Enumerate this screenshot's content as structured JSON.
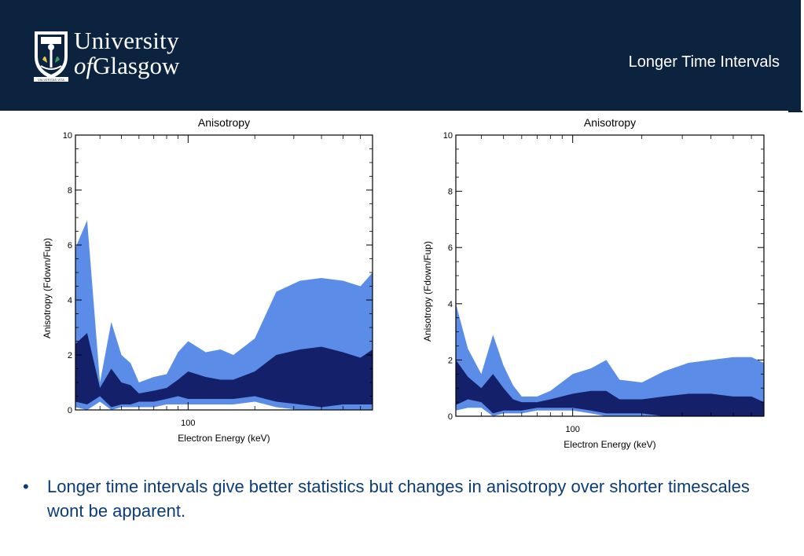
{
  "header": {
    "logo": {
      "line1": "University",
      "line2_of": "of",
      "line2_name": "Glasgow",
      "crest_motto": "VIA VERITAS VITA"
    },
    "title": "Longer Time Intervals"
  },
  "colors": {
    "header_bg": "#0c2340",
    "outer_band": "#5b8de8",
    "inner_band": "#14206a",
    "bullet_text": "#0c3c78"
  },
  "chart_data": [
    {
      "type": "area",
      "title": "Anisotropy",
      "xlabel": "Electron Energy (keV)",
      "ylabel": "Anisotropy (Fdown/Fup)",
      "x_scale": "log",
      "xlim": [
        31,
        680
      ],
      "ylim": [
        0,
        10
      ],
      "yticks": [
        0,
        2,
        4,
        6,
        8,
        10
      ],
      "xticks": [
        100
      ],
      "x": [
        31,
        35,
        40,
        45,
        50,
        55,
        60,
        70,
        80,
        90,
        100,
        120,
        140,
        160,
        200,
        250,
        320,
        400,
        500,
        600,
        680
      ],
      "outer_upper": [
        5.9,
        6.9,
        1.0,
        3.2,
        2.0,
        1.7,
        1.0,
        1.2,
        1.3,
        2.1,
        2.5,
        2.1,
        2.2,
        2.0,
        2.6,
        4.3,
        4.7,
        4.8,
        4.7,
        4.5,
        5.0
      ],
      "inner_upper": [
        2.4,
        2.8,
        0.8,
        1.5,
        1.0,
        0.9,
        0.6,
        0.7,
        0.8,
        1.1,
        1.4,
        1.2,
        1.1,
        1.1,
        1.4,
        2.0,
        2.2,
        2.3,
        2.1,
        1.9,
        2.2
      ],
      "inner_lower": [
        0.3,
        0.2,
        0.5,
        0.1,
        0.2,
        0.2,
        0.3,
        0.3,
        0.4,
        0.5,
        0.4,
        0.4,
        0.4,
        0.4,
        0.5,
        0.3,
        0.2,
        0.1,
        0.2,
        0.2,
        0.2
      ],
      "outer_lower": [
        0.1,
        0.0,
        0.3,
        0.0,
        0.1,
        0.1,
        0.1,
        0.1,
        0.2,
        0.2,
        0.2,
        0.2,
        0.2,
        0.2,
        0.3,
        0.1,
        0.0,
        0.0,
        0.0,
        0.0,
        0.0
      ],
      "grid": false,
      "legend": "none"
    },
    {
      "type": "area",
      "title": "Anisotropy",
      "xlabel": "Electron Energy (keV)",
      "ylabel": "Anisotropy (Fdown/Fup)",
      "x_scale": "log",
      "xlim": [
        31,
        680
      ],
      "ylim": [
        0,
        10
      ],
      "yticks": [
        0,
        2,
        4,
        6,
        8,
        10
      ],
      "xticks": [
        100
      ],
      "x": [
        31,
        35,
        40,
        45,
        50,
        55,
        60,
        70,
        80,
        100,
        120,
        140,
        160,
        200,
        250,
        320,
        400,
        500,
        600,
        680
      ],
      "outer_upper": [
        4.0,
        2.4,
        1.5,
        2.9,
        1.8,
        1.1,
        0.7,
        0.7,
        0.9,
        1.5,
        1.7,
        2.0,
        1.3,
        1.2,
        1.6,
        1.9,
        2.0,
        2.1,
        2.1,
        1.9
      ],
      "inner_upper": [
        2.0,
        1.4,
        1.0,
        1.5,
        1.0,
        0.6,
        0.5,
        0.5,
        0.6,
        0.8,
        0.9,
        0.9,
        0.6,
        0.6,
        0.7,
        0.8,
        0.8,
        0.7,
        0.7,
        0.5
      ],
      "inner_lower": [
        0.4,
        0.6,
        0.5,
        0.1,
        0.2,
        0.2,
        0.2,
        0.3,
        0.3,
        0.3,
        0.2,
        0.1,
        0.1,
        0.1,
        0.0,
        0.0,
        0.0,
        0.0,
        0.0,
        0.0
      ],
      "outer_lower": [
        0.2,
        0.3,
        0.3,
        0.0,
        0.1,
        0.1,
        0.1,
        0.2,
        0.2,
        0.2,
        0.1,
        0.0,
        0.0,
        0.0,
        0.0,
        0.0,
        0.0,
        0.0,
        0.0,
        0.0
      ],
      "grid": false,
      "legend": "none"
    }
  ],
  "bullets": [
    "Longer time intervals give better statistics but changes in anisotropy over shorter timescales wont be apparent."
  ],
  "bullet_symbol": "•"
}
